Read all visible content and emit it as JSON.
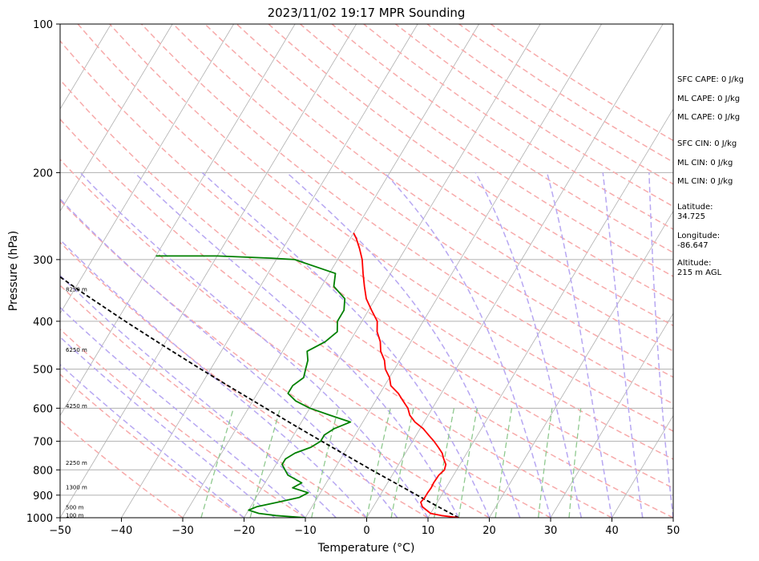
{
  "chart_data": {
    "type": "line",
    "title": "2023/11/02 19:17 MPR Sounding",
    "xlabel": "Temperature (°C)",
    "ylabel": "Pressure (hPa)",
    "xlim": [
      -50,
      50
    ],
    "ylim": [
      1000,
      100
    ],
    "y_scale": "log",
    "grid": true,
    "x_ticks": [
      -50,
      -40,
      -30,
      -20,
      -10,
      0,
      10,
      20,
      30,
      40,
      50
    ],
    "y_ticks": [
      100,
      200,
      300,
      400,
      500,
      600,
      700,
      800,
      900,
      1000
    ],
    "isotherm_temps": [
      -160,
      -150,
      -140,
      -130,
      -120,
      -110,
      -100,
      -90,
      -80,
      -70,
      -60,
      -50,
      -40,
      -30,
      -20,
      -10,
      0,
      10,
      20,
      30,
      40,
      50
    ],
    "dry_adiabat_thetas_c": [
      -30,
      -20,
      -10,
      0,
      10,
      20,
      30,
      40,
      50,
      60,
      70,
      80,
      90,
      100,
      110,
      120,
      130,
      140,
      150,
      160,
      170,
      180,
      190,
      200
    ],
    "moist_adiabat_temps_c": [
      -20,
      -15,
      -10,
      -5,
      0,
      5,
      10,
      15,
      20,
      25,
      30,
      35,
      40,
      45,
      50
    ],
    "mixing_ratio_surface_temps_c": [
      -27,
      -19,
      -9,
      0,
      4,
      11,
      15,
      21,
      28,
      33
    ],
    "temperature": {
      "pressure": [
        1000,
        990,
        980,
        965,
        950,
        930,
        910,
        890,
        870,
        850,
        820,
        800,
        780,
        760,
        740,
        720,
        700,
        680,
        660,
        640,
        620,
        600,
        580,
        560,
        540,
        520,
        500,
        480,
        460,
        440,
        420,
        400,
        380,
        360,
        340,
        320,
        300,
        285,
        272,
        265
      ],
      "values": [
        15,
        12,
        10,
        9,
        8,
        7.3,
        7.5,
        7.5,
        7.6,
        7.5,
        7.6,
        8,
        7.7,
        6.8,
        6,
        4.8,
        3.5,
        2,
        0.5,
        -1.5,
        -3,
        -4,
        -5.5,
        -7,
        -9,
        -10,
        -11.5,
        -12.5,
        -14,
        -15,
        -16.5,
        -17.5,
        -19.5,
        -21.5,
        -23,
        -24.5,
        -26,
        -27.5,
        -29,
        -30
      ]
    },
    "dewpoint": {
      "pressure": [
        1000,
        990,
        980,
        965,
        950,
        930,
        910,
        890,
        870,
        850,
        820,
        800,
        780,
        760,
        740,
        720,
        700,
        680,
        660,
        640,
        620,
        600,
        580,
        560,
        540,
        520,
        500,
        480,
        460,
        440,
        420,
        400,
        380,
        360,
        340,
        320,
        300,
        298,
        295,
        295
      ],
      "values": [
        -10,
        -15,
        -18,
        -20,
        -19,
        -16,
        -13,
        -12,
        -15,
        -14,
        -17,
        -18,
        -19,
        -19,
        -18,
        -16,
        -15,
        -15,
        -14,
        -12,
        -16,
        -20,
        -23,
        -25,
        -25,
        -24,
        -24.5,
        -25,
        -26,
        -24,
        -23,
        -24,
        -24,
        -25,
        -28,
        -29,
        -37,
        -41,
        -50,
        -60
      ]
    },
    "parcel": {
      "pressure": [
        1000,
        950,
        900,
        850,
        800,
        750,
        700,
        650,
        600,
        550,
        500,
        450,
        400,
        350,
        300,
        260
      ],
      "values": [
        15,
        10.6,
        6,
        1.2,
        -3.9,
        -9.2,
        -14.8,
        -20.8,
        -27.2,
        -34.1,
        -41.6,
        -49.7,
        -58.6,
        -68.4,
        -79.3,
        -89.1
      ]
    },
    "height_labels": {
      "pressure": [
        990,
        955,
        870,
        775,
        595,
        458,
        345
      ],
      "labels": [
        "100 m",
        "500 m",
        "1300 m",
        "2250 m",
        "4250 m",
        "6250 m",
        "8250 m"
      ]
    },
    "colors": {
      "temperature": "#ff0000",
      "dewpoint": "#008000",
      "parcel": "#000000",
      "isotherm": "#b0b0b0",
      "dry_adiabat": "#f7aaaa",
      "moist_adiabat": "#b7a7f2",
      "mixing_ratio": "#8fc98f"
    }
  },
  "stats": [
    {
      "label": "SFC CAPE:",
      "value": "0 J/kg"
    },
    {
      "label": "ML CAPE:",
      "value": "0 J/kg"
    },
    {
      "label": "ML CAPE:",
      "value": "0 J/kg"
    },
    {
      "label": "SFC CIN:",
      "value": "0 J/kg"
    },
    {
      "label": "ML CIN:",
      "value": "0 J/kg"
    },
    {
      "label": "ML CIN:",
      "value": "0 J/kg"
    }
  ],
  "location": {
    "latitude_label": "Latitude:",
    "latitude": "34.725",
    "longitude_label": "Longitude:",
    "longitude": "-86.647",
    "altitude_label": "Altitude:",
    "altitude": "215 m AGL"
  }
}
